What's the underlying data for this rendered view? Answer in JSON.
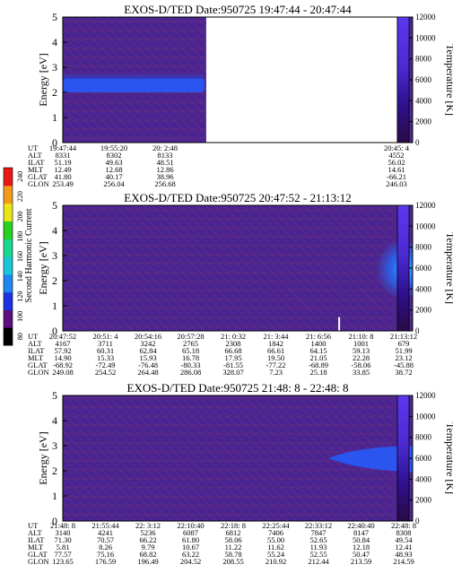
{
  "colorbar": {
    "label": "Second Harmonic Current",
    "ticks": [
      "80",
      "100",
      "120",
      "140",
      "160",
      "180",
      "200",
      "220",
      "240"
    ],
    "colors": [
      "#000000",
      "#5b0f80",
      "#1b33e0",
      "#1e88f0",
      "#18c8d8",
      "#18d890",
      "#28d020",
      "#e6e61a",
      "#f29a1a",
      "#e81818"
    ]
  },
  "chart_data": [
    {
      "type": "heatmap",
      "title": "EXOS-D/TED  Date:950725  19:47:44 - 20:47:44",
      "ylabel": "Energy [eV]",
      "y2label": "Temperature [K]",
      "yticks": [
        "0",
        "1",
        "2",
        "3",
        "4",
        "5"
      ],
      "y2ticks": [
        "0",
        "2000",
        "4000",
        "6000",
        "8000",
        "10000",
        "12000"
      ],
      "ylim": [
        0,
        5
      ],
      "y2lim": [
        0,
        12000
      ],
      "data_gap": {
        "from_fraction": 0.41,
        "to_fraction": 0.955
      },
      "feature": "band near 2.3 eV from 19:47:44 to about 20:10",
      "row_labels": [
        "UT",
        "ALT",
        "ILAT",
        "MLT",
        "GLAT",
        "GLON"
      ],
      "columns": [
        {
          "values": [
            "19:47:44",
            "8331",
            "51.19",
            "12.49",
            "41.80",
            "253.49"
          ]
        },
        {
          "values": [
            "19:55:20",
            "8302",
            "49.63",
            "12.68",
            "40.17",
            "256.04"
          ]
        },
        {
          "values": [
            "20: 2:48",
            "8133",
            "48.51",
            "12.86",
            "38.96",
            "256.68"
          ]
        },
        {
          "values": [
            "20:45: 4",
            "4552",
            "56.02",
            "14.61",
            "-66.21",
            "246.03"
          ]
        }
      ]
    },
    {
      "type": "heatmap",
      "title": "EXOS-D/TED  Date:950725  20:47:52 - 21:13:12",
      "ylabel": "Energy [eV]",
      "y2label": "Temperature [K]",
      "yticks": [
        "0",
        "1",
        "2",
        "3",
        "4",
        "5"
      ],
      "y2ticks": [
        "0",
        "2000",
        "4000",
        "6000",
        "8000",
        "10000",
        "12000"
      ],
      "ylim": [
        0,
        5
      ],
      "y2lim": [
        0,
        12000
      ],
      "feature": "enhancement near 2.5 eV at the end of the interval (21:10 - 21:13)",
      "row_labels": [
        "UT",
        "ALT",
        "ILAT",
        "MLT",
        "GLAT",
        "GLON"
      ],
      "columns": [
        {
          "values": [
            "20:47:52",
            "4167",
            "57.92",
            "14.90",
            "-68.92",
            "249.08"
          ]
        },
        {
          "values": [
            "20:51: 4",
            "3711",
            "60.31",
            "15.33",
            "-72.49",
            "254.52"
          ]
        },
        {
          "values": [
            "20:54:16",
            "3242",
            "62.84",
            "15.93",
            "-76.48",
            "264.48"
          ]
        },
        {
          "values": [
            "20:57:28",
            "2765",
            "65.18",
            "16.78",
            "-80.33",
            "286.08"
          ]
        },
        {
          "values": [
            "21: 0:32",
            "2308",
            "66.68",
            "17.95",
            "-81.55",
            "328.07"
          ]
        },
        {
          "values": [
            "21: 3:44",
            "1842",
            "66.61",
            "19.50",
            "-77.22",
            "7.23"
          ]
        },
        {
          "values": [
            "21: 6:56",
            "1400",
            "64.15",
            "21.05",
            "-68.89",
            "25.18"
          ]
        },
        {
          "values": [
            "21:10: 8",
            "1001",
            "59.13",
            "22.28",
            "-58.06",
            "33.85"
          ]
        },
        {
          "values": [
            "21:13:12",
            "679",
            "51.99",
            "23.12",
            "-45.88",
            "38.72"
          ]
        }
      ]
    },
    {
      "type": "heatmap",
      "title": "EXOS-D/TED  Date:950725  21:48: 8 - 22:48: 8",
      "ylabel": "Energy [eV]",
      "y2label": "Temperature [K]",
      "yticks": [
        "0",
        "1",
        "2",
        "3",
        "4",
        "5"
      ],
      "y2ticks": [
        "0",
        "2000",
        "4000",
        "6000",
        "8000",
        "10000",
        "12000"
      ],
      "ylim": [
        0,
        5
      ],
      "y2lim": [
        0,
        12000
      ],
      "feature": "band near 2.5 eV from about 22:33 to 22:48",
      "row_labels": [
        "UT",
        "ALT",
        "ILAT",
        "MLT",
        "GLAT",
        "GLON"
      ],
      "columns": [
        {
          "values": [
            "21:48: 8",
            "3140",
            "71.30",
            "5.81",
            "77.57",
            "123.65"
          ]
        },
        {
          "values": [
            "21:55:44",
            "4241",
            "70.57",
            "8.26",
            "75.16",
            "176.59"
          ]
        },
        {
          "values": [
            "22: 3:12",
            "5236",
            "66.22",
            "9.79",
            "68.82",
            "196.49"
          ]
        },
        {
          "values": [
            "22:10:40",
            "6087",
            "61.80",
            "10.67",
            "63.22",
            "204.52"
          ]
        },
        {
          "values": [
            "22:18: 8",
            "6812",
            "58.06",
            "11.22",
            "58.78",
            "208.55"
          ]
        },
        {
          "values": [
            "22:25:44",
            "7406",
            "55.00",
            "11.62",
            "55.24",
            "210.92"
          ]
        },
        {
          "values": [
            "22:33:12",
            "7847",
            "52.65",
            "11.93",
            "52.55",
            "212.44"
          ]
        },
        {
          "values": [
            "22:40:40",
            "8147",
            "50.84",
            "12.18",
            "50.47",
            "213.59"
          ]
        },
        {
          "values": [
            "22:48: 8",
            "8308",
            "49.54",
            "12.41",
            "48.93",
            "214.59"
          ]
        }
      ]
    }
  ]
}
